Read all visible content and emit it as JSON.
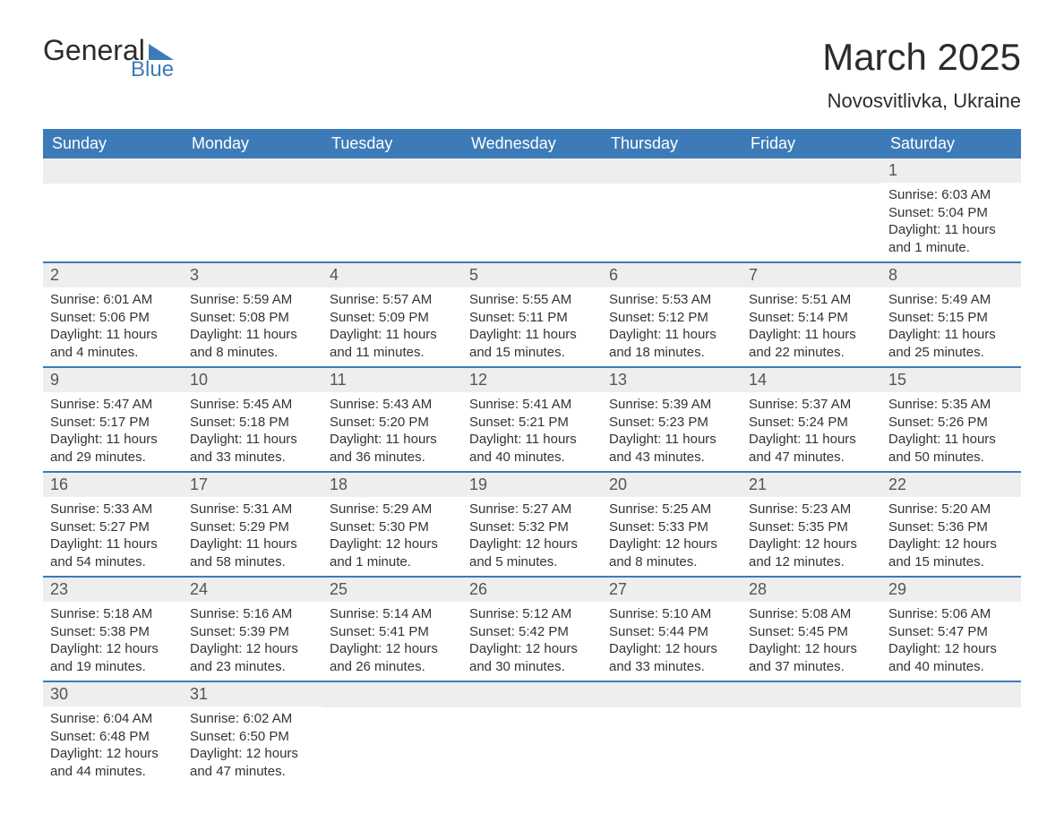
{
  "logo": {
    "text1": "General",
    "text2": "Blue",
    "shape_color": "#3d7bb8",
    "text1_color": "#2b2b2b"
  },
  "title": "March 2025",
  "location": "Novosvitlivka, Ukraine",
  "colors": {
    "header_bg": "#3d7bb8",
    "header_fg": "#ffffff",
    "bar_bg": "#eeeeee",
    "border": "#3d7bb8",
    "body_text": "#333333"
  },
  "weekdays": [
    "Sunday",
    "Monday",
    "Tuesday",
    "Wednesday",
    "Thursday",
    "Friday",
    "Saturday"
  ],
  "weeks": [
    [
      null,
      null,
      null,
      null,
      null,
      null,
      {
        "n": "1",
        "sunrise": "Sunrise: 6:03 AM",
        "sunset": "Sunset: 5:04 PM",
        "dl1": "Daylight: 11 hours",
        "dl2": "and 1 minute."
      }
    ],
    [
      {
        "n": "2",
        "sunrise": "Sunrise: 6:01 AM",
        "sunset": "Sunset: 5:06 PM",
        "dl1": "Daylight: 11 hours",
        "dl2": "and 4 minutes."
      },
      {
        "n": "3",
        "sunrise": "Sunrise: 5:59 AM",
        "sunset": "Sunset: 5:08 PM",
        "dl1": "Daylight: 11 hours",
        "dl2": "and 8 minutes."
      },
      {
        "n": "4",
        "sunrise": "Sunrise: 5:57 AM",
        "sunset": "Sunset: 5:09 PM",
        "dl1": "Daylight: 11 hours",
        "dl2": "and 11 minutes."
      },
      {
        "n": "5",
        "sunrise": "Sunrise: 5:55 AM",
        "sunset": "Sunset: 5:11 PM",
        "dl1": "Daylight: 11 hours",
        "dl2": "and 15 minutes."
      },
      {
        "n": "6",
        "sunrise": "Sunrise: 5:53 AM",
        "sunset": "Sunset: 5:12 PM",
        "dl1": "Daylight: 11 hours",
        "dl2": "and 18 minutes."
      },
      {
        "n": "7",
        "sunrise": "Sunrise: 5:51 AM",
        "sunset": "Sunset: 5:14 PM",
        "dl1": "Daylight: 11 hours",
        "dl2": "and 22 minutes."
      },
      {
        "n": "8",
        "sunrise": "Sunrise: 5:49 AM",
        "sunset": "Sunset: 5:15 PM",
        "dl1": "Daylight: 11 hours",
        "dl2": "and 25 minutes."
      }
    ],
    [
      {
        "n": "9",
        "sunrise": "Sunrise: 5:47 AM",
        "sunset": "Sunset: 5:17 PM",
        "dl1": "Daylight: 11 hours",
        "dl2": "and 29 minutes."
      },
      {
        "n": "10",
        "sunrise": "Sunrise: 5:45 AM",
        "sunset": "Sunset: 5:18 PM",
        "dl1": "Daylight: 11 hours",
        "dl2": "and 33 minutes."
      },
      {
        "n": "11",
        "sunrise": "Sunrise: 5:43 AM",
        "sunset": "Sunset: 5:20 PM",
        "dl1": "Daylight: 11 hours",
        "dl2": "and 36 minutes."
      },
      {
        "n": "12",
        "sunrise": "Sunrise: 5:41 AM",
        "sunset": "Sunset: 5:21 PM",
        "dl1": "Daylight: 11 hours",
        "dl2": "and 40 minutes."
      },
      {
        "n": "13",
        "sunrise": "Sunrise: 5:39 AM",
        "sunset": "Sunset: 5:23 PM",
        "dl1": "Daylight: 11 hours",
        "dl2": "and 43 minutes."
      },
      {
        "n": "14",
        "sunrise": "Sunrise: 5:37 AM",
        "sunset": "Sunset: 5:24 PM",
        "dl1": "Daylight: 11 hours",
        "dl2": "and 47 minutes."
      },
      {
        "n": "15",
        "sunrise": "Sunrise: 5:35 AM",
        "sunset": "Sunset: 5:26 PM",
        "dl1": "Daylight: 11 hours",
        "dl2": "and 50 minutes."
      }
    ],
    [
      {
        "n": "16",
        "sunrise": "Sunrise: 5:33 AM",
        "sunset": "Sunset: 5:27 PM",
        "dl1": "Daylight: 11 hours",
        "dl2": "and 54 minutes."
      },
      {
        "n": "17",
        "sunrise": "Sunrise: 5:31 AM",
        "sunset": "Sunset: 5:29 PM",
        "dl1": "Daylight: 11 hours",
        "dl2": "and 58 minutes."
      },
      {
        "n": "18",
        "sunrise": "Sunrise: 5:29 AM",
        "sunset": "Sunset: 5:30 PM",
        "dl1": "Daylight: 12 hours",
        "dl2": "and 1 minute."
      },
      {
        "n": "19",
        "sunrise": "Sunrise: 5:27 AM",
        "sunset": "Sunset: 5:32 PM",
        "dl1": "Daylight: 12 hours",
        "dl2": "and 5 minutes."
      },
      {
        "n": "20",
        "sunrise": "Sunrise: 5:25 AM",
        "sunset": "Sunset: 5:33 PM",
        "dl1": "Daylight: 12 hours",
        "dl2": "and 8 minutes."
      },
      {
        "n": "21",
        "sunrise": "Sunrise: 5:23 AM",
        "sunset": "Sunset: 5:35 PM",
        "dl1": "Daylight: 12 hours",
        "dl2": "and 12 minutes."
      },
      {
        "n": "22",
        "sunrise": "Sunrise: 5:20 AM",
        "sunset": "Sunset: 5:36 PM",
        "dl1": "Daylight: 12 hours",
        "dl2": "and 15 minutes."
      }
    ],
    [
      {
        "n": "23",
        "sunrise": "Sunrise: 5:18 AM",
        "sunset": "Sunset: 5:38 PM",
        "dl1": "Daylight: 12 hours",
        "dl2": "and 19 minutes."
      },
      {
        "n": "24",
        "sunrise": "Sunrise: 5:16 AM",
        "sunset": "Sunset: 5:39 PM",
        "dl1": "Daylight: 12 hours",
        "dl2": "and 23 minutes."
      },
      {
        "n": "25",
        "sunrise": "Sunrise: 5:14 AM",
        "sunset": "Sunset: 5:41 PM",
        "dl1": "Daylight: 12 hours",
        "dl2": "and 26 minutes."
      },
      {
        "n": "26",
        "sunrise": "Sunrise: 5:12 AM",
        "sunset": "Sunset: 5:42 PM",
        "dl1": "Daylight: 12 hours",
        "dl2": "and 30 minutes."
      },
      {
        "n": "27",
        "sunrise": "Sunrise: 5:10 AM",
        "sunset": "Sunset: 5:44 PM",
        "dl1": "Daylight: 12 hours",
        "dl2": "and 33 minutes."
      },
      {
        "n": "28",
        "sunrise": "Sunrise: 5:08 AM",
        "sunset": "Sunset: 5:45 PM",
        "dl1": "Daylight: 12 hours",
        "dl2": "and 37 minutes."
      },
      {
        "n": "29",
        "sunrise": "Sunrise: 5:06 AM",
        "sunset": "Sunset: 5:47 PM",
        "dl1": "Daylight: 12 hours",
        "dl2": "and 40 minutes."
      }
    ],
    [
      {
        "n": "30",
        "sunrise": "Sunrise: 6:04 AM",
        "sunset": "Sunset: 6:48 PM",
        "dl1": "Daylight: 12 hours",
        "dl2": "and 44 minutes."
      },
      {
        "n": "31",
        "sunrise": "Sunrise: 6:02 AM",
        "sunset": "Sunset: 6:50 PM",
        "dl1": "Daylight: 12 hours",
        "dl2": "and 47 minutes."
      },
      null,
      null,
      null,
      null,
      null
    ]
  ]
}
